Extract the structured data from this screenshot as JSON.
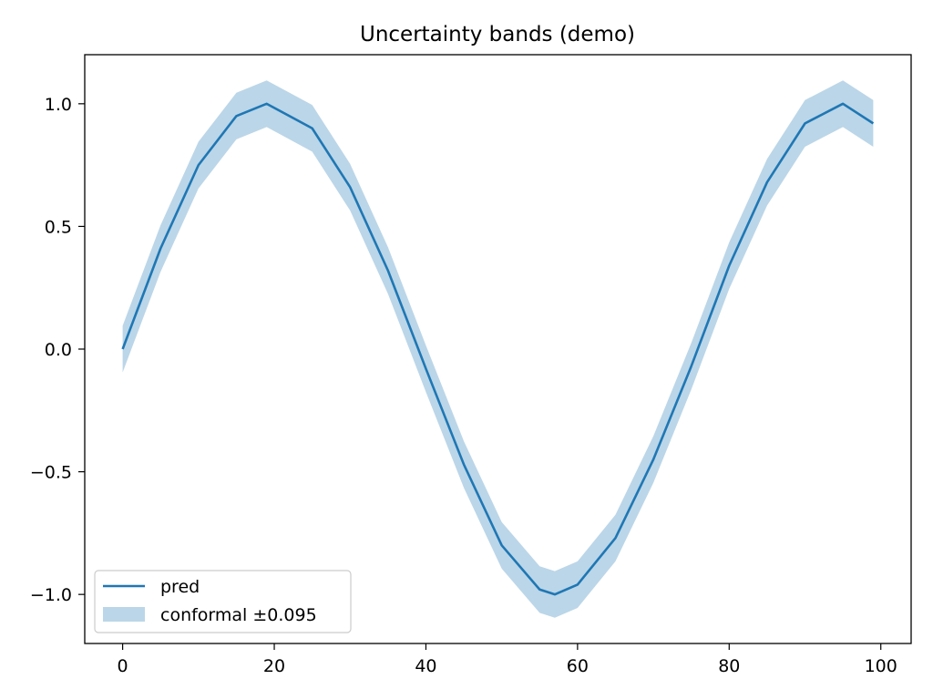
{
  "chart_data": {
    "type": "line",
    "title": "Uncertainty bands (demo)",
    "xlabel": "",
    "ylabel": "",
    "xlim": [
      -5,
      104
    ],
    "ylim": [
      -1.2,
      1.2
    ],
    "x_ticks": [
      0,
      20,
      40,
      60,
      80,
      100
    ],
    "x_tick_labels": [
      "0",
      "20",
      "40",
      "60",
      "80",
      "100"
    ],
    "y_ticks": [
      1.0,
      0.5,
      0.0,
      -0.5,
      -1.0
    ],
    "y_tick_labels": [
      "1.0",
      "0.5",
      "0.0",
      "−0.5",
      "−1.0"
    ],
    "grid": false,
    "legend_position": "lower-left",
    "series": [
      {
        "name": "pred",
        "kind": "line",
        "color": "#1f77b4",
        "x": [
          0,
          5,
          10,
          15,
          19,
          25,
          30,
          35,
          40,
          45,
          50,
          55,
          57,
          60,
          65,
          70,
          75,
          80,
          85,
          90,
          95,
          99
        ],
        "y": [
          0.0,
          0.41,
          0.75,
          0.95,
          1.0,
          0.9,
          0.66,
          0.32,
          -0.08,
          -0.47,
          -0.8,
          -0.98,
          -1.0,
          -0.96,
          -0.77,
          -0.45,
          -0.07,
          0.34,
          0.68,
          0.92,
          1.0,
          0.92
        ]
      },
      {
        "name": "conformal ±0.095",
        "kind": "band",
        "color": "#1f77b4",
        "opacity": 0.3,
        "half_width": 0.095
      }
    ]
  }
}
